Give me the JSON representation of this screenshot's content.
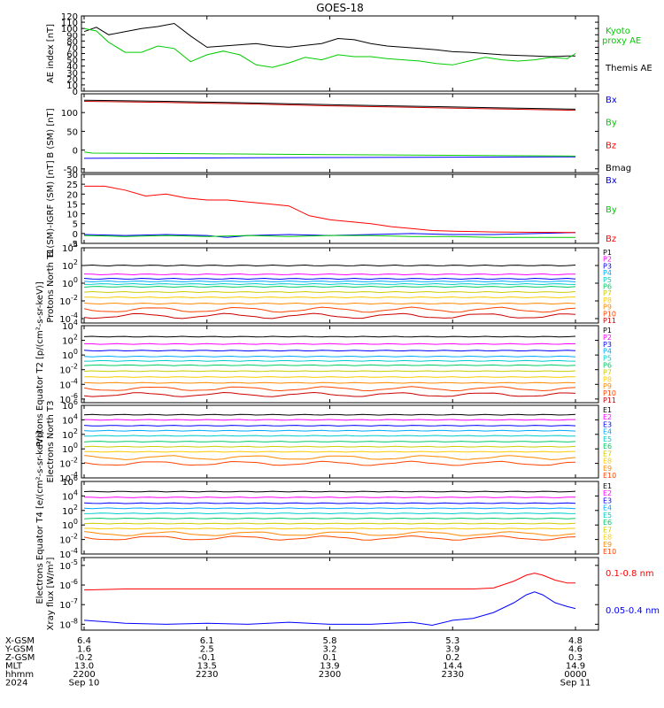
{
  "title": "GOES-18",
  "colors": {
    "black": "#000000",
    "green": "#00cc00",
    "blue": "#0000ff",
    "red": "#ff0000",
    "darkred": "#cc0000",
    "bands": [
      "#000000",
      "#ff00ff",
      "#0000ff",
      "#00aaff",
      "#00cccc",
      "#00cc66",
      "#cccc00",
      "#ffcc00",
      "#ff8800",
      "#ff4400",
      "#cc0000"
    ]
  },
  "chart_data": [
    {
      "type": "line",
      "id": "ae",
      "ylabel": "AE index [nT]",
      "ylim": [
        0,
        120
      ],
      "yticks": [
        "0",
        "10",
        "20",
        "30",
        "40",
        "50",
        "60",
        "70",
        "80",
        "90",
        "100",
        "110",
        "120"
      ],
      "xlim": [
        0,
        120
      ],
      "series": [
        {
          "name": "Themis AE",
          "color": "#000000",
          "x": [
            0,
            3,
            6,
            10,
            14,
            18,
            22,
            26,
            30,
            34,
            38,
            42,
            46,
            50,
            54,
            58,
            62,
            66,
            70,
            74,
            78,
            82,
            86,
            90,
            94,
            98,
            102,
            106,
            110,
            114,
            118,
            120
          ],
          "y": [
            95,
            102,
            90,
            95,
            100,
            103,
            108,
            88,
            70,
            72,
            74,
            76,
            72,
            70,
            73,
            76,
            84,
            82,
            76,
            72,
            70,
            68,
            66,
            63,
            62,
            60,
            58,
            57,
            56,
            55,
            56,
            56
          ]
        },
        {
          "name": "Kyoto proxy AE",
          "color": "#00cc00",
          "x": [
            0,
            3,
            6,
            10,
            14,
            18,
            22,
            26,
            30,
            34,
            38,
            42,
            46,
            50,
            54,
            58,
            62,
            66,
            70,
            74,
            78,
            82,
            86,
            90,
            94,
            98,
            102,
            106,
            110,
            114,
            118,
            120
          ],
          "y": [
            100,
            96,
            78,
            62,
            62,
            72,
            68,
            47,
            58,
            64,
            58,
            42,
            38,
            45,
            54,
            50,
            58,
            55,
            55,
            52,
            50,
            48,
            44,
            42,
            48,
            54,
            50,
            48,
            50,
            54,
            52,
            60
          ]
        }
      ],
      "legend": [
        {
          "label": "Kyoto proxy AE",
          "lines": [
            "Kyoto",
            "proxy AE"
          ],
          "color": "#00cc00"
        },
        {
          "label": "Themis AE",
          "lines": [
            "Themis AE"
          ],
          "color": "#000000"
        }
      ]
    },
    {
      "type": "line",
      "id": "bsm",
      "ylabel": "B (SM) [nT]",
      "ylim": [
        -60,
        150
      ],
      "yticks": [
        "-50",
        "0",
        "50",
        "100"
      ],
      "xlim": [
        0,
        120
      ],
      "series": [
        {
          "name": "Bx",
          "color": "#0000ff",
          "x": [
            0,
            30,
            60,
            90,
            120
          ],
          "y": [
            -22,
            -21,
            -20,
            -19,
            -18
          ]
        },
        {
          "name": "By",
          "color": "#00cc00",
          "x": [
            0,
            2,
            30,
            60,
            90,
            120
          ],
          "y": [
            -5,
            -8,
            -10,
            -12,
            -14,
            -16
          ]
        },
        {
          "name": "Bz",
          "color": "#cc0000",
          "x": [
            0,
            20,
            40,
            60,
            80,
            100,
            120
          ],
          "y": [
            130,
            127,
            123,
            118,
            114,
            110,
            106
          ]
        },
        {
          "name": "Bmag",
          "color": "#000000",
          "x": [
            0,
            20,
            40,
            60,
            80,
            100,
            120
          ],
          "y": [
            133,
            130,
            126,
            121,
            117,
            113,
            109
          ]
        }
      ],
      "legend": [
        {
          "label": "Bx",
          "color": "#0000ff"
        },
        {
          "label": "By",
          "color": "#00cc00"
        },
        {
          "label": "Bz",
          "color": "#ff0000"
        },
        {
          "label": "Bmag",
          "color": "#000000"
        }
      ]
    },
    {
      "type": "line",
      "id": "bigrf",
      "ylabel": "B (SM)-IGRF (SM) [nT]",
      "ylim": [
        -5,
        30
      ],
      "yticks": [
        "-5",
        "0",
        "5",
        "10",
        "15",
        "20",
        "25",
        "30"
      ],
      "xlim": [
        0,
        120
      ],
      "series": [
        {
          "name": "Bx",
          "color": "#0000ff",
          "x": [
            0,
            10,
            20,
            30,
            35,
            40,
            50,
            60,
            70,
            80,
            90,
            100,
            110,
            120
          ],
          "y": [
            -0.5,
            -1,
            -0.5,
            -1,
            -2,
            -1,
            -0.5,
            -1,
            -0.5,
            0,
            -0.5,
            -0.5,
            0,
            0.5
          ]
        },
        {
          "name": "By",
          "color": "#00cc00",
          "x": [
            0,
            10,
            20,
            30,
            40,
            50,
            60,
            70,
            80,
            90,
            100,
            110,
            120
          ],
          "y": [
            -1,
            -1.5,
            -1,
            -1.5,
            -1,
            -1.5,
            -1,
            -1,
            -1.5,
            -1.5,
            -2,
            -2,
            -2
          ]
        },
        {
          "name": "Bz",
          "color": "#ff0000",
          "x": [
            0,
            5,
            10,
            15,
            20,
            25,
            30,
            35,
            40,
            45,
            50,
            55,
            60,
            65,
            70,
            75,
            80,
            85,
            90,
            95,
            100,
            110,
            120
          ],
          "y": [
            24,
            24,
            22,
            19,
            20,
            18,
            17,
            17,
            16,
            15,
            14,
            9,
            7,
            6,
            5,
            3.5,
            2.5,
            1.5,
            1.2,
            1,
            0.8,
            0.6,
            0.5
          ]
        }
      ],
      "legend": [
        {
          "label": "Bx",
          "color": "#0000ff"
        },
        {
          "label": "By",
          "color": "#00cc00"
        },
        {
          "label": "Bz",
          "color": "#ff0000"
        }
      ]
    },
    {
      "type": "line",
      "id": "prot-north",
      "scale": "log",
      "ylabel": "Protons North T1",
      "ylim": [
        -4.5,
        4
      ],
      "yticks": [
        -4,
        -2,
        0,
        2,
        4
      ],
      "xlim": [
        0,
        120
      ],
      "series": [
        {
          "name": "P1",
          "base": 2.0
        },
        {
          "name": "P2",
          "base": 1.0
        },
        {
          "name": "P3",
          "base": 0.5
        },
        {
          "name": "P4",
          "base": 0.2
        },
        {
          "name": "P5",
          "base": -0.1
        },
        {
          "name": "P6",
          "base": -0.4
        },
        {
          "name": "P7",
          "base": -1.0
        },
        {
          "name": "P8",
          "base": -1.6
        },
        {
          "name": "P9",
          "base": -2.3
        },
        {
          "name": "P10",
          "base": -3.0
        },
        {
          "name": "P11",
          "base": -3.7
        }
      ],
      "legend": [
        "P1",
        "P2",
        "P3",
        "P4",
        "P5",
        "P6",
        "P7",
        "P8",
        "P9",
        "P10",
        "P11"
      ]
    },
    {
      "type": "line",
      "id": "prot-eq",
      "scale": "log",
      "ylabel": "Protons Equator T2 [p/(cm²-s-sr-keV)]",
      "ylim": [
        -6.5,
        4
      ],
      "yticks": [
        -6,
        -4,
        -2,
        0,
        2,
        4
      ],
      "xlim": [
        0,
        120
      ],
      "series": [
        {
          "name": "P1",
          "base": 2.5
        },
        {
          "name": "P2",
          "base": 1.5
        },
        {
          "name": "P3",
          "base": 0.6
        },
        {
          "name": "P4",
          "base": -0.2
        },
        {
          "name": "P5",
          "base": -0.8
        },
        {
          "name": "P6",
          "base": -1.4
        },
        {
          "name": "P7",
          "base": -2.2
        },
        {
          "name": "P8",
          "base": -3.0
        },
        {
          "name": "P9",
          "base": -3.8
        },
        {
          "name": "P10",
          "base": -4.6
        },
        {
          "name": "P11",
          "base": -5.4
        }
      ],
      "legend": [
        "P1",
        "P2",
        "P3",
        "P4",
        "P5",
        "P6",
        "P7",
        "P8",
        "P9",
        "P10",
        "P11"
      ]
    },
    {
      "type": "line",
      "id": "elec-north",
      "scale": "log",
      "ylabel": "Electrons North T3",
      "ylim": [
        -4,
        6
      ],
      "yticks": [
        -4,
        -2,
        0,
        2,
        4,
        6
      ],
      "xlim": [
        0,
        120
      ],
      "series": [
        {
          "name": "E1",
          "base": 4.7
        },
        {
          "name": "E2",
          "base": 4.0
        },
        {
          "name": "E3",
          "base": 3.2
        },
        {
          "name": "E4",
          "base": 2.5
        },
        {
          "name": "E5",
          "base": 1.8
        },
        {
          "name": "E6",
          "base": 1.0
        },
        {
          "name": "E7",
          "base": 0.3
        },
        {
          "name": "E8",
          "base": -0.4
        },
        {
          "name": "E9",
          "base": -1.2
        },
        {
          "name": "E10",
          "base": -2.0
        }
      ],
      "legend": [
        "E1",
        "E2",
        "E3",
        "E4",
        "E5",
        "E6",
        "E7",
        "E8",
        "E9",
        "E10"
      ]
    },
    {
      "type": "line",
      "id": "elec-eq",
      "scale": "log",
      "ylabel": "Electrons Equator T4 [e/(cm²-s-sr-keV)]",
      "ylim": [
        -4,
        6
      ],
      "yticks": [
        -4,
        -2,
        0,
        2,
        4,
        6
      ],
      "xlim": [
        0,
        120
      ],
      "series": [
        {
          "name": "E1",
          "base": 4.6
        },
        {
          "name": "E2",
          "base": 3.8
        },
        {
          "name": "E3",
          "base": 3.0
        },
        {
          "name": "E4",
          "base": 2.3
        },
        {
          "name": "E5",
          "base": 1.6
        },
        {
          "name": "E6",
          "base": 0.9
        },
        {
          "name": "E7",
          "base": 0.2
        },
        {
          "name": "E8",
          "base": -0.5
        },
        {
          "name": "E9",
          "base": -1.2
        },
        {
          "name": "E10",
          "base": -1.8
        }
      ],
      "legend": [
        "E1",
        "E2",
        "E3",
        "E4",
        "E5",
        "E6",
        "E7",
        "E8",
        "E9",
        "E10"
      ]
    },
    {
      "type": "line",
      "id": "xray",
      "scale": "log",
      "ylabel": "Xray flux [W/m²]",
      "ylim": [
        -8.3,
        -4.6
      ],
      "yticks": [
        -8,
        -7,
        -6,
        -5
      ],
      "xlim": [
        0,
        120
      ],
      "series": [
        {
          "name": "0.1-0.8 nm",
          "color": "#ff0000",
          "x": [
            0,
            10,
            20,
            40,
            60,
            80,
            95,
            100,
            105,
            108,
            110,
            112,
            115,
            118,
            120
          ],
          "y": [
            -6.25,
            -6.2,
            -6.2,
            -6.2,
            -6.2,
            -6.2,
            -6.2,
            -6.15,
            -5.8,
            -5.5,
            -5.4,
            -5.5,
            -5.75,
            -5.9,
            -5.9
          ]
        },
        {
          "name": "0.05-0.4 nm",
          "color": "#0000ff",
          "x": [
            0,
            10,
            20,
            30,
            40,
            50,
            60,
            70,
            80,
            85,
            90,
            95,
            100,
            105,
            108,
            110,
            112,
            115,
            118,
            120
          ],
          "y": [
            -7.8,
            -7.95,
            -8.0,
            -7.95,
            -8.0,
            -7.9,
            -8.0,
            -8.0,
            -7.9,
            -8.05,
            -7.8,
            -7.7,
            -7.4,
            -6.9,
            -6.5,
            -6.35,
            -6.5,
            -6.9,
            -7.1,
            -7.2
          ]
        }
      ],
      "legend": [
        {
          "label": "0.1-0.8 nm",
          "color": "#ff0000"
        },
        {
          "label": "0.05-0.4 nm",
          "color": "#0000ff"
        }
      ]
    }
  ],
  "xaxis": {
    "rows": [
      {
        "label": "X-GSM",
        "values": [
          "6.4",
          "6.1",
          "5.8",
          "5.3",
          "4.8"
        ]
      },
      {
        "label": "Y-GSM",
        "values": [
          "1.6",
          "2.5",
          "3.2",
          "3.9",
          "4.6"
        ]
      },
      {
        "label": "Z-GSM",
        "values": [
          "-0.2",
          "-0.1",
          "0.1",
          "0.2",
          "0.3"
        ]
      },
      {
        "label": "MLT",
        "values": [
          "13.0",
          "13.5",
          "13.9",
          "14.4",
          "14.9"
        ]
      },
      {
        "label": "hhmm",
        "values": [
          "2200",
          "2230",
          "2300",
          "2330",
          "0000"
        ]
      },
      {
        "label": "2024",
        "values": [
          "Sep 10",
          "",
          "",
          "",
          "Sep 11"
        ]
      }
    ],
    "ticks": [
      0,
      30,
      60,
      90,
      120
    ]
  }
}
